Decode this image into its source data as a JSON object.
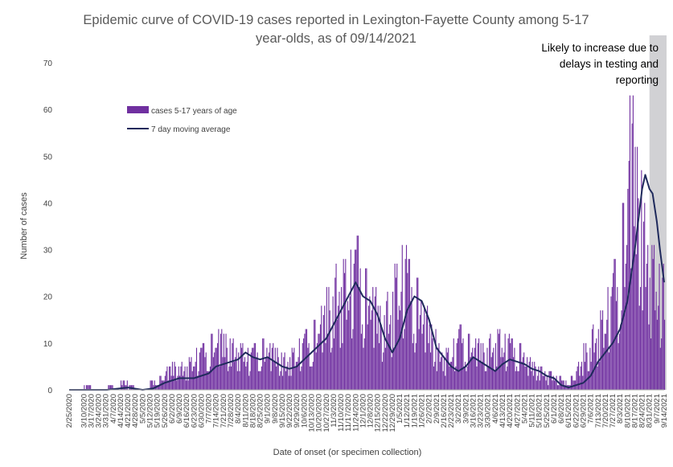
{
  "colors": {
    "bar": "#7030A0",
    "average_line": "#1F2A5C",
    "shade": "#C9C9CC",
    "axis_text": "#404040",
    "title_text": "#595959"
  },
  "chart_data": {
    "type": "bar",
    "title": "Epidemic curve of COVID-19 cases reported in Lexington-Fayette County among 5-17 year-olds, as of 09/14/2021",
    "title_lines": [
      "Epidemic curve of COVID-19 cases reported in Lexington-Fayette County among 5-17",
      "year-olds, as of 09/14/2021"
    ],
    "xlabel": "Date of onset (or specimen collection)",
    "ylabel": "Number of cases",
    "ylim": [
      0,
      70
    ],
    "yticks": [
      0,
      10,
      20,
      30,
      40,
      50,
      60,
      70
    ],
    "grid": false,
    "legend_position": "upper-left",
    "x_start_date": "2020-02-25",
    "x_end_date": "2021-09-14",
    "xtick_labels": [
      "2/25/2020",
      "3/10/2020",
      "3/17/2020",
      "3/24/2020",
      "3/31/2020",
      "4/7/2020",
      "4/14/2020",
      "4/21/2020",
      "4/28/2020",
      "5/5/2020",
      "5/12/2020",
      "5/19/2020",
      "5/26/2020",
      "6/2/2020",
      "6/9/2020",
      "6/16/2020",
      "6/23/2020",
      "6/30/2020",
      "7/7/2020",
      "7/14/2020",
      "7/21/2020",
      "7/28/2020",
      "8/4/2020",
      "8/11/2020",
      "8/18/2020",
      "8/25/2020",
      "9/1/2020",
      "9/8/2020",
      "9/15/2020",
      "9/22/2020",
      "9/29/2020",
      "10/6/2020",
      "10/13/2020",
      "10/20/2020",
      "10/27/2020",
      "11/3/2020",
      "11/10/2020",
      "11/17/2020",
      "11/24/2020",
      "12/1/2020",
      "12/8/2020",
      "12/15/2020",
      "12/22/2020",
      "12/29/2020",
      "1/5/2021",
      "1/12/2021",
      "1/19/2021",
      "1/26/2021",
      "2/2/2021",
      "2/9/2021",
      "2/16/2021",
      "2/23/2021",
      "3/2/2021",
      "3/9/2021",
      "3/16/2021",
      "3/23/2021",
      "3/30/2021",
      "4/6/2021",
      "4/13/2021",
      "4/20/2021",
      "4/27/2021",
      "5/4/2021",
      "5/11/2021",
      "5/18/2021",
      "5/25/2021",
      "6/1/2021",
      "6/8/2021",
      "6/15/2021",
      "6/22/2021",
      "6/29/2021",
      "7/6/2021",
      "7/13/2021",
      "7/20/2021",
      "7/27/2021",
      "8/3/2021",
      "8/10/2021",
      "8/17/2021",
      "8/24/2021",
      "8/31/2021",
      "9/7/2021",
      "9/14/2021"
    ],
    "series": [
      {
        "name": "cases 5-17 years of age",
        "kind": "bar"
      },
      {
        "name": "7 day moving average",
        "kind": "line"
      }
    ],
    "weekly_peak_cases": [
      0,
      0,
      1,
      0,
      0,
      1,
      0,
      2,
      1,
      0,
      0,
      2,
      3,
      5,
      6,
      6,
      7,
      9,
      10,
      12,
      13,
      12,
      11,
      10,
      9,
      10,
      11,
      10,
      9,
      8,
      9,
      11,
      13,
      15,
      18,
      22,
      27,
      28,
      30,
      33,
      26,
      22,
      18,
      21,
      27,
      31,
      28,
      24,
      18,
      14,
      10,
      9,
      11,
      14,
      12,
      11,
      10,
      12,
      13,
      12,
      11,
      10,
      7,
      6,
      5,
      4,
      3,
      2,
      3,
      6,
      10,
      14,
      17,
      22,
      28,
      40,
      63,
      52,
      40,
      31,
      27
    ],
    "moving_average": [
      [
        "2020-02-25",
        0
      ],
      [
        "2020-04-01",
        0
      ],
      [
        "2020-04-21",
        0.5
      ],
      [
        "2020-05-05",
        0
      ],
      [
        "2020-05-15",
        0.3
      ],
      [
        "2020-05-26",
        1.5
      ],
      [
        "2020-06-09",
        2.5
      ],
      [
        "2020-06-23",
        2.5
      ],
      [
        "2020-07-07",
        3.5
      ],
      [
        "2020-07-14",
        5
      ],
      [
        "2020-07-28",
        6
      ],
      [
        "2020-08-04",
        6.5
      ],
      [
        "2020-08-11",
        8
      ],
      [
        "2020-08-18",
        7
      ],
      [
        "2020-08-25",
        6.5
      ],
      [
        "2020-09-01",
        7
      ],
      [
        "2020-09-08",
        6
      ],
      [
        "2020-09-15",
        5
      ],
      [
        "2020-09-22",
        4.5
      ],
      [
        "2020-09-29",
        5
      ],
      [
        "2020-10-06",
        6.5
      ],
      [
        "2020-10-13",
        8
      ],
      [
        "2020-10-20",
        9.5
      ],
      [
        "2020-10-27",
        11
      ],
      [
        "2020-11-03",
        14
      ],
      [
        "2020-11-10",
        17
      ],
      [
        "2020-11-17",
        20
      ],
      [
        "2020-11-24",
        23
      ],
      [
        "2020-12-01",
        20
      ],
      [
        "2020-12-08",
        19
      ],
      [
        "2020-12-15",
        16
      ],
      [
        "2020-12-22",
        11
      ],
      [
        "2020-12-29",
        8
      ],
      [
        "2021-01-05",
        11
      ],
      [
        "2021-01-12",
        17
      ],
      [
        "2021-01-19",
        20
      ],
      [
        "2021-01-26",
        19
      ],
      [
        "2021-02-02",
        15
      ],
      [
        "2021-02-09",
        9
      ],
      [
        "2021-02-16",
        7
      ],
      [
        "2021-02-23",
        5
      ],
      [
        "2021-03-02",
        4
      ],
      [
        "2021-03-09",
        5
      ],
      [
        "2021-03-16",
        7
      ],
      [
        "2021-03-23",
        6
      ],
      [
        "2021-03-30",
        5
      ],
      [
        "2021-04-06",
        4
      ],
      [
        "2021-04-13",
        5.5
      ],
      [
        "2021-04-20",
        6.5
      ],
      [
        "2021-04-27",
        6
      ],
      [
        "2021-05-04",
        5.5
      ],
      [
        "2021-05-11",
        4.5
      ],
      [
        "2021-05-18",
        4
      ],
      [
        "2021-05-25",
        3
      ],
      [
        "2021-06-01",
        2.5
      ],
      [
        "2021-06-08",
        1
      ],
      [
        "2021-06-15",
        0.5
      ],
      [
        "2021-06-22",
        1
      ],
      [
        "2021-06-29",
        1.5
      ],
      [
        "2021-07-06",
        3
      ],
      [
        "2021-07-13",
        6
      ],
      [
        "2021-07-20",
        8
      ],
      [
        "2021-07-27",
        10
      ],
      [
        "2021-08-03",
        13
      ],
      [
        "2021-08-10",
        19
      ],
      [
        "2021-08-17",
        30
      ],
      [
        "2021-08-24",
        43
      ],
      [
        "2021-08-27",
        46
      ],
      [
        "2021-08-31",
        43
      ],
      [
        "2021-09-03",
        42
      ],
      [
        "2021-09-07",
        36
      ],
      [
        "2021-09-10",
        30
      ],
      [
        "2021-09-14",
        23
      ]
    ],
    "annotation": {
      "lines": [
        "Likely to increase due to",
        "delays in testing and",
        "reporting"
      ],
      "shaded_from": "2021-08-31",
      "shaded_to": "2021-09-14"
    }
  }
}
